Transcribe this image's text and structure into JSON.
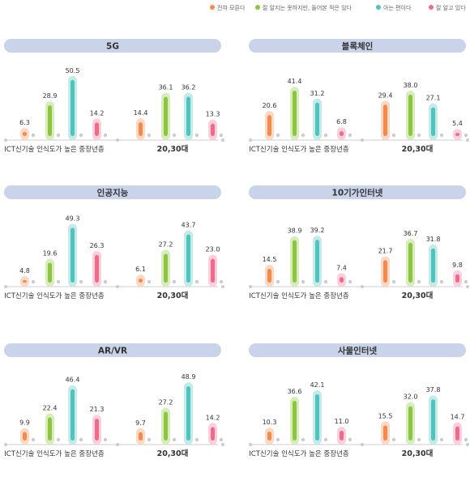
{
  "legend": [
    {
      "label": "전혀 모른다",
      "color": "#f4894a"
    },
    {
      "label": "잘 알지는 못하지만, 들어본 적은 있다",
      "color": "#8cc63f"
    },
    {
      "label": "아는 편이다",
      "color": "#4fc3bd"
    },
    {
      "label": "잘 알고 있다",
      "color": "#f06a8a"
    }
  ],
  "colors": {
    "series_fill": [
      "#f4894a",
      "#8cc63f",
      "#4fc3bd",
      "#f06a8a"
    ],
    "series_bg": [
      "#fcd9c4",
      "#d8edbd",
      "#c5ebe8",
      "#fbd0dc"
    ],
    "header_bg": "#c9d3ea",
    "axis": "#cccccc",
    "dot": "#cccccc"
  },
  "chart_data": [
    {
      "type": "bar",
      "title": "5G",
      "categories": [
        "ICT신기술 인식도가 높은 중장년층",
        "20,30대"
      ],
      "series": [
        {
          "name": "전혀 모른다",
          "values": [
            6.3,
            14.4
          ]
        },
        {
          "name": "잘 알지는 못하지만, 들어본 적은 있다",
          "values": [
            28.9,
            36.1
          ]
        },
        {
          "name": "아는 편이다",
          "values": [
            50.5,
            36.2
          ]
        },
        {
          "name": "잘 알고 있다",
          "values": [
            14.2,
            13.3
          ]
        }
      ]
    },
    {
      "type": "bar",
      "title": "블록체인",
      "categories": [
        "ICT신기술 인식도가 높은 중장년층",
        "20,30대"
      ],
      "series": [
        {
          "name": "전혀 모른다",
          "values": [
            20.6,
            29.4
          ]
        },
        {
          "name": "잘 알지는 못하지만, 들어본 적은 있다",
          "values": [
            41.4,
            38.0
          ]
        },
        {
          "name": "아는 편이다",
          "values": [
            31.2,
            27.1
          ]
        },
        {
          "name": "잘 알고 있다",
          "values": [
            6.8,
            5.4
          ]
        }
      ]
    },
    {
      "type": "bar",
      "title": "인공지능",
      "categories": [
        "ICT신기술 인식도가 높은 중장년층",
        "20,30대"
      ],
      "series": [
        {
          "name": "전혀 모른다",
          "values": [
            4.8,
            6.1
          ]
        },
        {
          "name": "잘 알지는 못하지만, 들어본 적은 있다",
          "values": [
            19.6,
            27.2
          ]
        },
        {
          "name": "아는 편이다",
          "values": [
            49.3,
            43.7
          ]
        },
        {
          "name": "잘 알고 있다",
          "values": [
            26.3,
            23.0
          ]
        }
      ]
    },
    {
      "type": "bar",
      "title": "10기가인터넷",
      "categories": [
        "ICT신기술 인식도가 높은 중장년층",
        "20,30대"
      ],
      "series": [
        {
          "name": "전혀 모른다",
          "values": [
            14.5,
            21.7
          ]
        },
        {
          "name": "잘 알지는 못하지만, 들어본 적은 있다",
          "values": [
            38.9,
            36.7
          ]
        },
        {
          "name": "아는 편이다",
          "values": [
            39.2,
            31.8
          ]
        },
        {
          "name": "잘 알고 있다",
          "values": [
            7.4,
            9.8
          ]
        }
      ]
    },
    {
      "type": "bar",
      "title": "AR/VR",
      "categories": [
        "ICT신기술 인식도가 높은 중장년층",
        "20,30대"
      ],
      "series": [
        {
          "name": "전혀 모른다",
          "values": [
            9.9,
            9.7
          ]
        },
        {
          "name": "잘 알지는 못하지만, 들어본 적은 있다",
          "values": [
            22.4,
            27.2
          ]
        },
        {
          "name": "아는 편이다",
          "values": [
            46.4,
            48.9
          ]
        },
        {
          "name": "잘 알고 있다",
          "values": [
            21.3,
            14.2
          ]
        }
      ]
    },
    {
      "type": "bar",
      "title": "사물인터넷",
      "categories": [
        "ICT신기술 인식도가 높은 중장년층",
        "20,30대"
      ],
      "series": [
        {
          "name": "전혀 모른다",
          "values": [
            10.3,
            15.5
          ]
        },
        {
          "name": "잘 알지는 못하지만, 들어본 적은 있다",
          "values": [
            36.6,
            32.0
          ]
        },
        {
          "name": "아는 편이다",
          "values": [
            42.1,
            37.8
          ]
        },
        {
          "name": "잘 알고 있다",
          "values": [
            11.0,
            14.7
          ]
        }
      ]
    }
  ]
}
